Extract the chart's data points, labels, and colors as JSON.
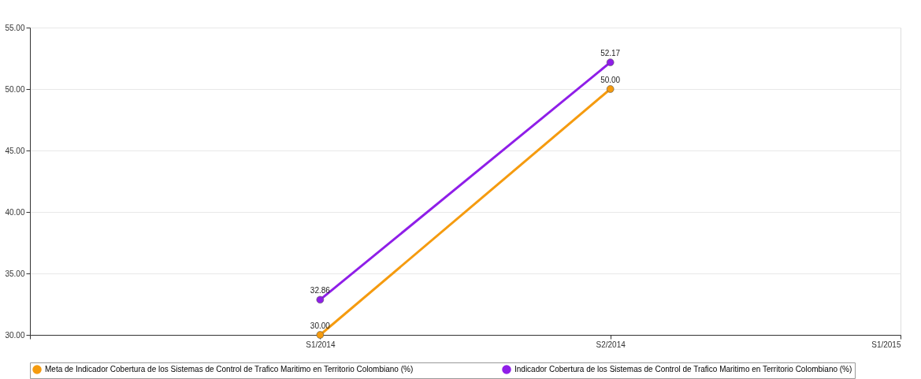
{
  "chart_data": {
    "type": "line",
    "categories": [
      null,
      "S1/2014",
      "S2/2014",
      "S1/2015"
    ],
    "series": [
      {
        "name": "Meta de Indicador Cobertura de los Sistemas de Control de Trafico Maritimo en Territorio Colombiano (%)",
        "color": "#f59b0f",
        "values": [
          null,
          30.0,
          50.0,
          null
        ],
        "value_labels": [
          null,
          "30.00",
          "50.00",
          null
        ]
      },
      {
        "name": "Indicador Cobertura de los Sistemas de Control de Trafico Maritimo en Territorio Colombiano (%)",
        "color": "#8f1ee8",
        "values": [
          null,
          32.86,
          52.17,
          null
        ],
        "value_labels": [
          null,
          "32.86",
          "52.17",
          null
        ]
      }
    ],
    "ylim": [
      30,
      55
    ],
    "yticks": [
      {
        "value": 30,
        "label": "30.00"
      },
      {
        "value": 35,
        "label": "35.00"
      },
      {
        "value": 40,
        "label": "40.00"
      },
      {
        "value": 45,
        "label": "45.00"
      },
      {
        "value": 50,
        "label": "50.00"
      },
      {
        "value": 55,
        "label": "55.00"
      }
    ],
    "grid": "y",
    "legend": "bottom",
    "marker": "circle",
    "line_style": "solid"
  }
}
